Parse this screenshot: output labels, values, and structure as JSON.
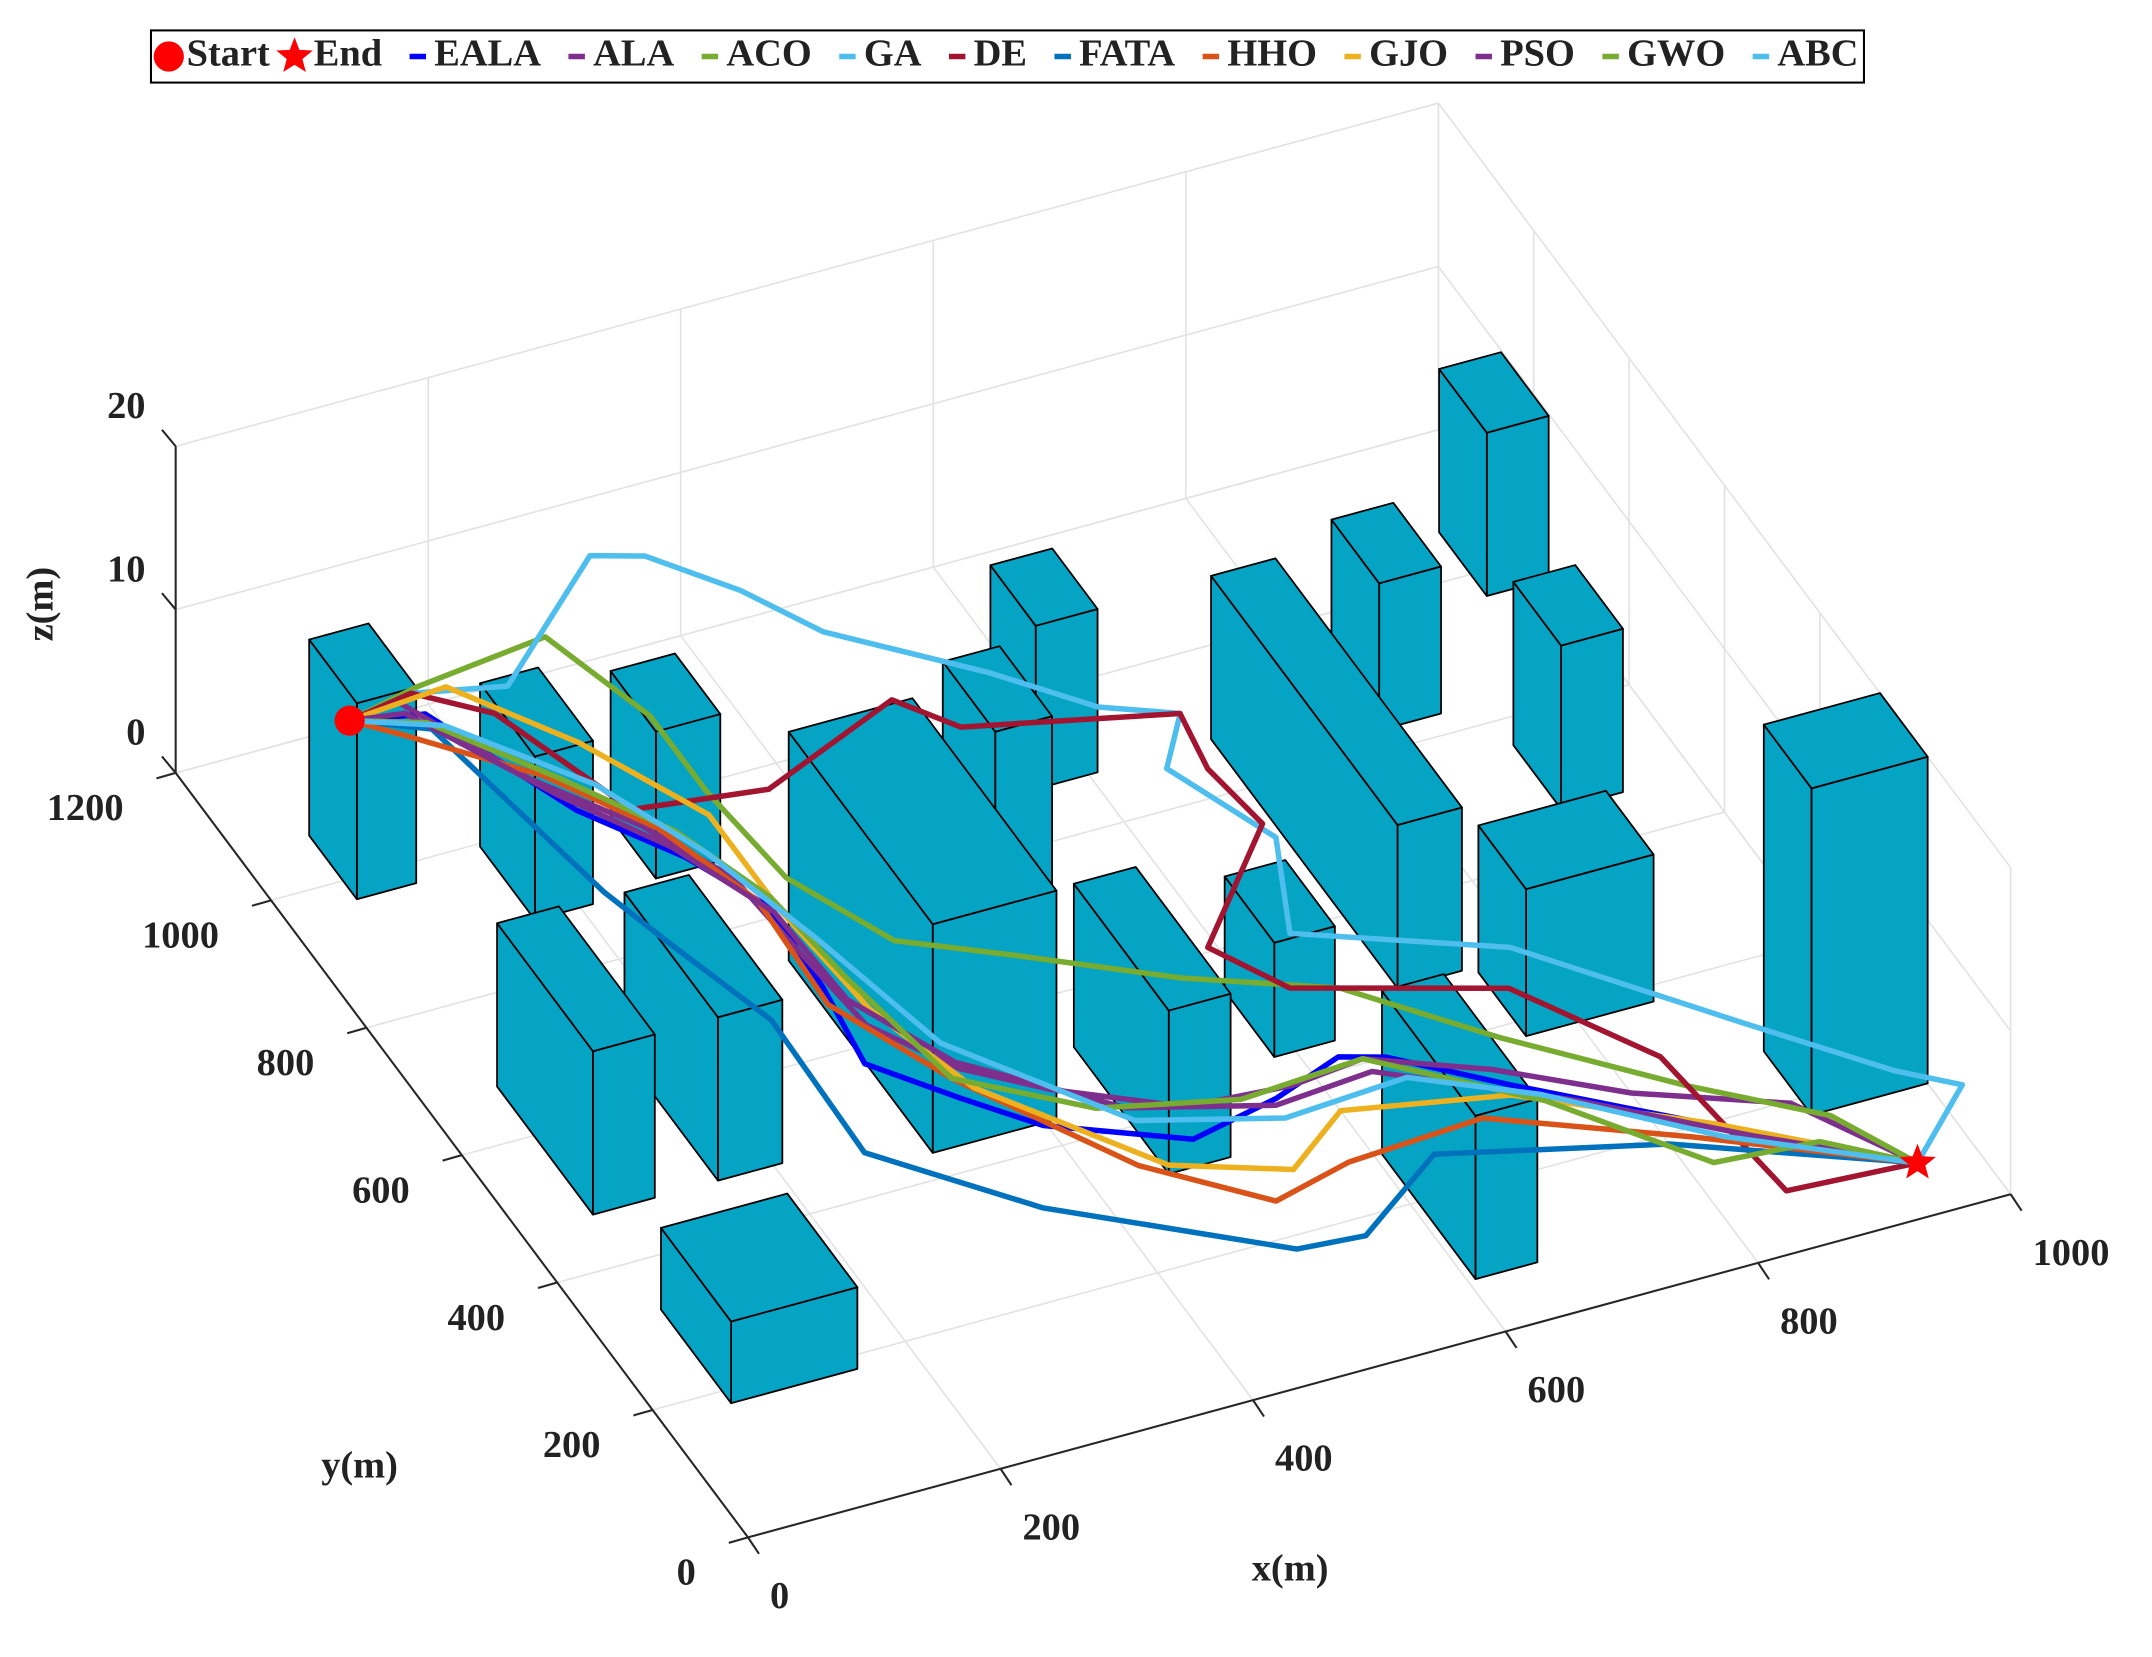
{
  "chart_data": {
    "type": "path3d",
    "x_label": "x(m)",
    "y_label": "y(m)",
    "z_label": "z(m)",
    "xlim": [
      0,
      1000
    ],
    "ylim": [
      0,
      1200
    ],
    "zlim": [
      0,
      20
    ],
    "xticks": [
      0,
      200,
      400,
      600,
      800,
      1000
    ],
    "yticks": [
      0,
      200,
      400,
      600,
      800,
      1000,
      1200
    ],
    "zticks": [
      0,
      10,
      20
    ],
    "grid": true,
    "start": {
      "name": "Start",
      "color": "#ff0000",
      "x": 100,
      "y": 1100,
      "z": 5
    },
    "end": {
      "name": "End",
      "color": "#ff0000",
      "x": 930,
      "y": 10,
      "z": 3
    },
    "building_color": "#05a3c4",
    "buildings": [
      {
        "x": 57,
        "y": 971,
        "width": 47,
        "depth": 100,
        "height": 12
      },
      {
        "x": 164,
        "y": 881,
        "width": 46,
        "depth": 115,
        "height": 10
      },
      {
        "x": 264,
        "y": 892,
        "width": 51,
        "depth": 95,
        "height": 9
      },
      {
        "x": 57,
        "y": 476,
        "width": 49,
        "depth": 201,
        "height": 10
      },
      {
        "x": 156,
        "y": 476,
        "width": 51,
        "depth": 196,
        "height": 10
      },
      {
        "x": 55,
        "y": 181,
        "width": 100,
        "depth": 147,
        "height": 5
      },
      {
        "x": 311,
        "y": 436,
        "width": 98,
        "depth": 302,
        "height": 14
      },
      {
        "x": 447,
        "y": 665,
        "width": 45,
        "depth": 110,
        "height": 14
      },
      {
        "x": 558,
        "y": 874,
        "width": 49,
        "depth": 95,
        "height": 10
      },
      {
        "x": 456,
        "y": 325,
        "width": 49,
        "depth": 199,
        "height": 10
      },
      {
        "x": 698,
        "y": 486,
        "width": 51,
        "depth": 391,
        "height": 10
      },
      {
        "x": 813,
        "y": 829,
        "width": 49,
        "depth": 100,
        "height": 9
      },
      {
        "x": 950,
        "y": 966,
        "width": 49,
        "depth": 100,
        "height": 10
      },
      {
        "x": 894,
        "y": 662,
        "width": 49,
        "depth": 100,
        "height": 10
      },
      {
        "x": 759,
        "y": 378,
        "width": 101,
        "depth": 100,
        "height": 9
      },
      {
        "x": 908,
        "y": 174,
        "width": 92,
        "depth": 100,
        "height": 20
      },
      {
        "x": 583,
        "y": 440,
        "width": 48,
        "depth": 104,
        "height": 7
      },
      {
        "x": 606,
        "y": 79,
        "width": 49,
        "depth": 196,
        "height": 10
      }
    ],
    "series": [
      {
        "name": "EALA",
        "color": "#0000ff",
        "x": [
          100,
          153,
          205,
          254,
          284,
          280,
          270,
          316,
          357,
          449,
          524,
          585,
          616,
          684,
          799,
          930
        ],
        "y": [
          1100,
          1082,
          903,
          802,
          710,
          583,
          470,
          391,
          326,
          255,
          279,
          311,
          294,
          214,
          88,
          10
        ],
        "z": [
          5,
          5,
          5,
          5,
          5,
          5,
          5,
          5,
          5,
          5,
          5,
          5,
          5,
          5,
          5,
          3
        ]
      },
      {
        "name": "ALA",
        "color": "#7e2f8e",
        "x": [
          100,
          140,
          190,
          240,
          275,
          282,
          290,
          330,
          380,
          460,
          540,
          600,
          680,
          760,
          860,
          930
        ],
        "y": [
          1100,
          1110,
          960,
          860,
          760,
          640,
          520,
          430,
          370,
          300,
          290,
          300,
          240,
          160,
          90,
          10
        ],
        "z": [
          5,
          5,
          5,
          5,
          5,
          5,
          5,
          5,
          5,
          5,
          5,
          5,
          5,
          5,
          5,
          3
        ]
      },
      {
        "name": "ACO",
        "color": "#77ac30",
        "x": [
          100,
          160,
          270,
          300,
          300,
          310,
          350,
          420,
          520,
          620,
          700,
          800,
          880,
          930
        ],
        "y": [
          1100,
          1120,
          1140,
          1000,
          880,
          740,
          620,
          560,
          470,
          400,
          280,
          150,
          60,
          10
        ],
        "z": [
          5,
          5,
          5,
          5,
          5,
          5,
          5,
          5,
          5,
          5,
          5,
          5,
          5,
          3
        ]
      },
      {
        "name": "GA",
        "color": "#4dbeee",
        "x": [
          100,
          154,
          221,
          259,
          295,
          341,
          375,
          488,
          559,
          626,
          590,
          644,
          606,
          752,
          868,
          944,
          998,
          930
        ],
        "y": [
          1100,
          1114,
          1089,
          1017,
          997,
          918,
          835,
          787,
          746,
          751,
          684,
          598,
          468,
          393,
          212,
          96,
          96,
          10
        ],
        "z": [
          5,
          5,
          5,
          15,
          15,
          15,
          15,
          12,
          10,
          8,
          8,
          6,
          6,
          5,
          5,
          5,
          3,
          3
        ]
      },
      {
        "name": "DE",
        "color": "#a2142f",
        "x": [
          100,
          154,
          199,
          242,
          342,
          467,
          499,
          650,
          641,
          650,
          553,
          587,
          731,
          797,
          830,
          930
        ],
        "y": [
          1100,
          1114,
          1058,
          884,
          862,
          935,
          875,
          815,
          733,
          642,
          500,
          418,
          340,
          197,
          20,
          10
        ],
        "z": [
          5,
          5,
          5,
          5,
          5,
          5,
          5,
          5,
          5,
          5,
          5,
          5,
          5,
          5,
          3,
          3
        ]
      },
      {
        "name": "FATA",
        "color": "#0072bd",
        "x": [
          100,
          150,
          183,
          200,
          230,
          226,
          316,
          463,
          515,
          600,
          760,
          930
        ],
        "y": [
          1100,
          1060,
          786,
          700,
          560,
          354,
          219,
          75,
          68,
          150,
          80,
          10
        ],
        "z": [
          5,
          5,
          5,
          5,
          5,
          5,
          5,
          5,
          5,
          5,
          5,
          3
        ]
      },
      {
        "name": "HHO",
        "color": "#d95319",
        "x": [
          100,
          130,
          200,
          250,
          280,
          275,
          320,
          400,
          473,
          540,
          650,
          780,
          930
        ],
        "y": [
          1100,
          1060,
          960,
          850,
          720,
          560,
          420,
          240,
          145,
          170,
          180,
          80,
          10
        ],
        "z": [
          5,
          5,
          5,
          5,
          5,
          5,
          5,
          5,
          5,
          5,
          5,
          5,
          3
        ]
      },
      {
        "name": "GJO",
        "color": "#edb120",
        "x": [
          100,
          180,
          240,
          290,
          290,
          300,
          330,
          420,
          500,
          560,
          680,
          800,
          930
        ],
        "y": [
          1100,
          1110,
          990,
          850,
          700,
          540,
          400,
          230,
          180,
          240,
          200,
          90,
          10
        ],
        "z": [
          5,
          5,
          5,
          5,
          5,
          5,
          5,
          5,
          5,
          5,
          5,
          5,
          3
        ]
      },
      {
        "name": "PSO",
        "color": "#7e2f8e",
        "x": [
          100,
          140,
          200,
          250,
          285,
          290,
          330,
          420,
          520,
          600,
          720,
          820,
          930
        ],
        "y": [
          1100,
          1090,
          930,
          820,
          700,
          560,
          440,
          320,
          270,
          280,
          170,
          60,
          10
        ],
        "z": [
          5,
          5,
          5,
          5,
          5,
          5,
          5,
          5,
          5,
          5,
          5,
          5,
          3
        ]
      },
      {
        "name": "GWO",
        "color": "#77ac30",
        "x": [
          100,
          150,
          210,
          260,
          290,
          300,
          320,
          400,
          500,
          600,
          700,
          780,
          860,
          930
        ],
        "y": [
          1100,
          1070,
          950,
          840,
          720,
          590,
          420,
          330,
          290,
          300,
          180,
          40,
          30,
          10
        ],
        "z": [
          5,
          5,
          5,
          5,
          5,
          5,
          5,
          5,
          5,
          5,
          5,
          5,
          5,
          3
        ]
      },
      {
        "name": "ABC",
        "color": "#4dbeee",
        "x": [
          100,
          160,
          230,
          270,
          300,
          330,
          420,
          520,
          620,
          700,
          800,
          930
        ],
        "y": [
          1100,
          1060,
          930,
          800,
          650,
          470,
          300,
          250,
          260,
          190,
          70,
          10
        ],
        "z": [
          5,
          5,
          5,
          5,
          5,
          5,
          5,
          5,
          5,
          5,
          5,
          3
        ]
      }
    ]
  }
}
